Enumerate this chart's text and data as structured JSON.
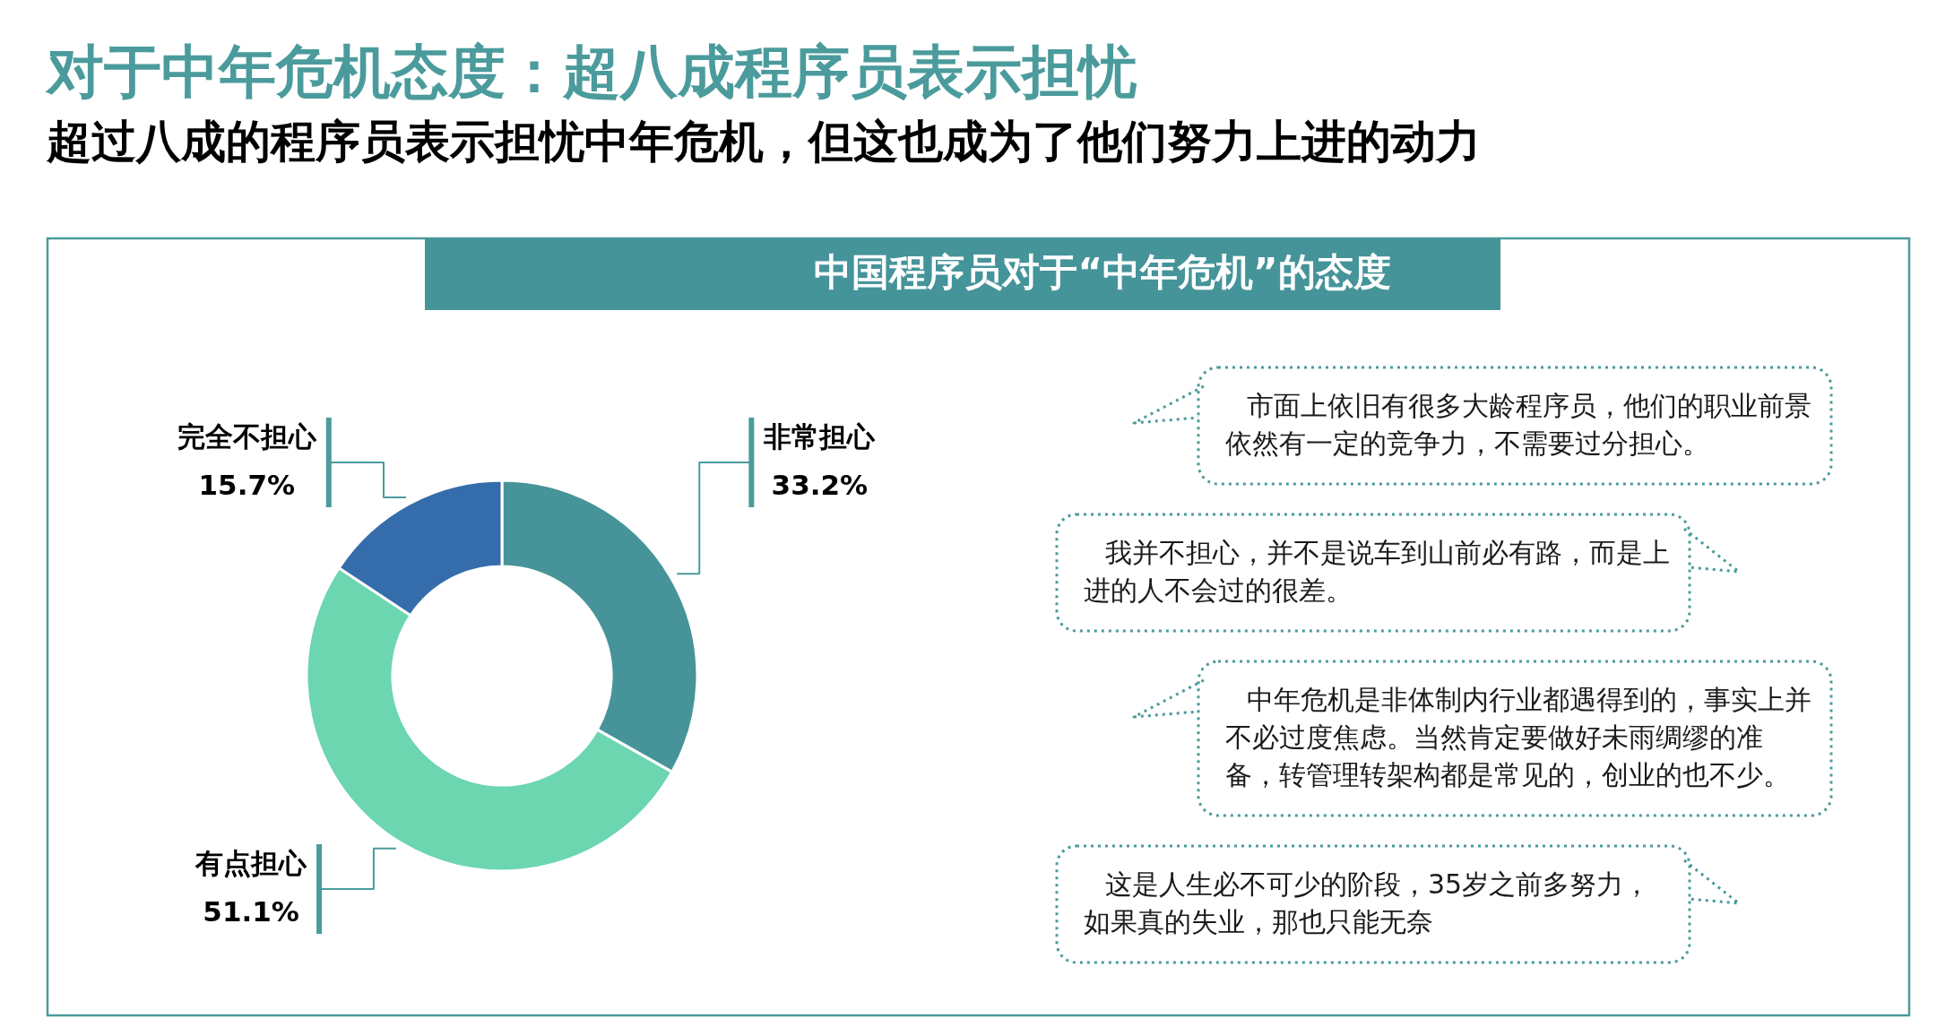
{
  "chart_data": {
    "type": "donut",
    "title": "对于中年危机态度：超八成程序员表示担忧",
    "subtitle": "超过八成的程序员表示担忧中年危机，但这也成为了他们努力上进的动力",
    "categories": [
      "非常担心",
      "有点担心",
      "完全不担心"
    ],
    "values": [
      33.2,
      51.1,
      15.7
    ],
    "colors": [
      "#46949a",
      "#6bd6b0",
      "#356cab"
    ],
    "value_labels": [
      "33.2%",
      "51.1%",
      "15.7%"
    ],
    "annotations": [
      "中国程序员对于“中年危机”的态度",
      "市面上依旧有很多大龄程序员，他们的职业前景依然有一定的竞争力，不需要过分担心。",
      "我并不担心，并不是说车到山前必有路，而是上进的人不会过的很差。",
      "中年危机是非体制内行业都遇得到的，事实上并不必过度焦虑。当然肯定要做好未雨绸缪的准备，转管理转架构都是常见的，创业的也不少。",
      "这是人生必不可少的阶段，35岁之前多努力，如果真的失业，那也只能无奈"
    ]
  }
}
